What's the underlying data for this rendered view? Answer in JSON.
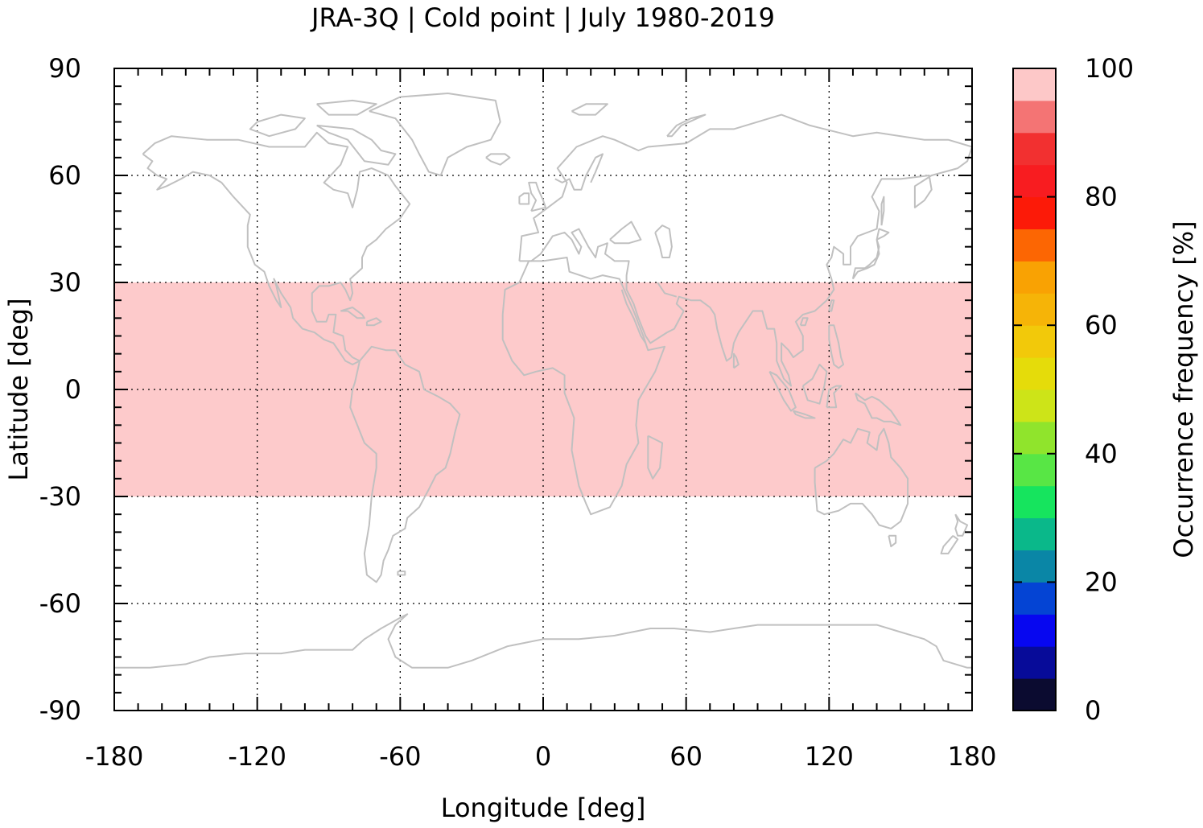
{
  "chart_data": {
    "type": "heatmap",
    "title": "JRA-3Q | Cold point | July 1980-2019",
    "xlabel": "Longitude [deg]",
    "ylabel": "Latitude [deg]",
    "xlim": [
      -180,
      180
    ],
    "ylim": [
      -90,
      90
    ],
    "x_ticks": [
      "-180",
      "-120",
      "-60",
      "0",
      "60",
      "120",
      "180"
    ],
    "y_ticks": [
      "90",
      "60",
      "30",
      "0",
      "-30",
      "-60",
      "-90"
    ],
    "grid": true,
    "background_map": "world coastlines",
    "data_region": {
      "lon_range": [
        -180,
        180
      ],
      "lat_range": [
        -30,
        30
      ],
      "value": 100
    },
    "colorbar": {
      "label": "Occurrence frequency [%]",
      "range": [
        0,
        100
      ],
      "tick_labels": [
        "0",
        "20",
        "40",
        "60",
        "80",
        "100"
      ],
      "levels": [
        0,
        5,
        10,
        15,
        20,
        25,
        30,
        35,
        40,
        45,
        50,
        55,
        60,
        65,
        70,
        75,
        80,
        85,
        90,
        95,
        100
      ],
      "colors": [
        "#0b0b30",
        "#070b99",
        "#0707f0",
        "#0444d4",
        "#0a86a6",
        "#0ab88a",
        "#16e45e",
        "#58e645",
        "#90e42c",
        "#cde418",
        "#e5dc0a",
        "#f2c90a",
        "#f6b407",
        "#f9a203",
        "#fc6603",
        "#fc1a08",
        "#f81c20",
        "#f23030",
        "#f47474",
        "#fdc8c8"
      ]
    }
  },
  "colors": {
    "data_fill": "#fdcacb",
    "coastline": "#c0c0c0",
    "axes": "#000000"
  }
}
